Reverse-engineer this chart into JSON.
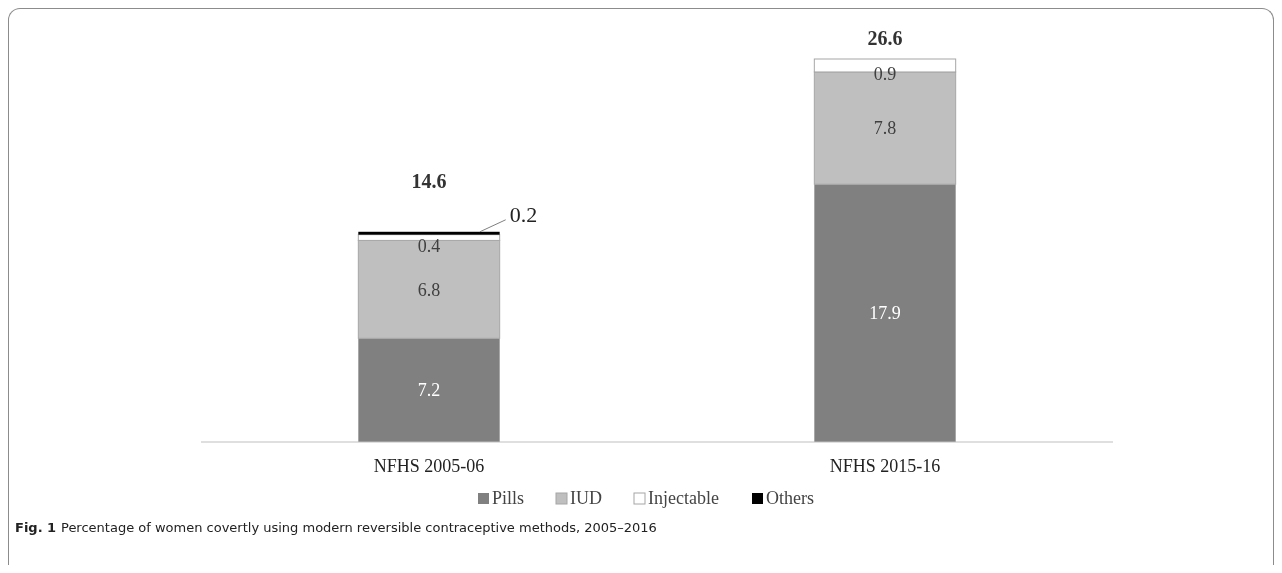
{
  "chart_data": {
    "type": "bar",
    "stacked": true,
    "categories": [
      "NFHS 2005-06",
      "NFHS 2015-16"
    ],
    "series": [
      {
        "name": "Pills",
        "color": "#808080",
        "values": [
          7.2,
          17.9
        ]
      },
      {
        "name": "IUD",
        "color": "#bfbfbf",
        "values": [
          6.8,
          7.8
        ]
      },
      {
        "name": "Injectable",
        "color": "#ffffff",
        "values": [
          0.4,
          0.9
        ]
      },
      {
        "name": "Others",
        "color": "#000000",
        "values": [
          0.2,
          null
        ]
      }
    ],
    "data_labels": true,
    "totals": [
      "14.6",
      "26.6"
    ],
    "legend": "bottom",
    "annotations": [
      "Fig. 1",
      "Percentage of women covertly using modern reversible contraceptive methods, 2005–2016"
    ]
  }
}
